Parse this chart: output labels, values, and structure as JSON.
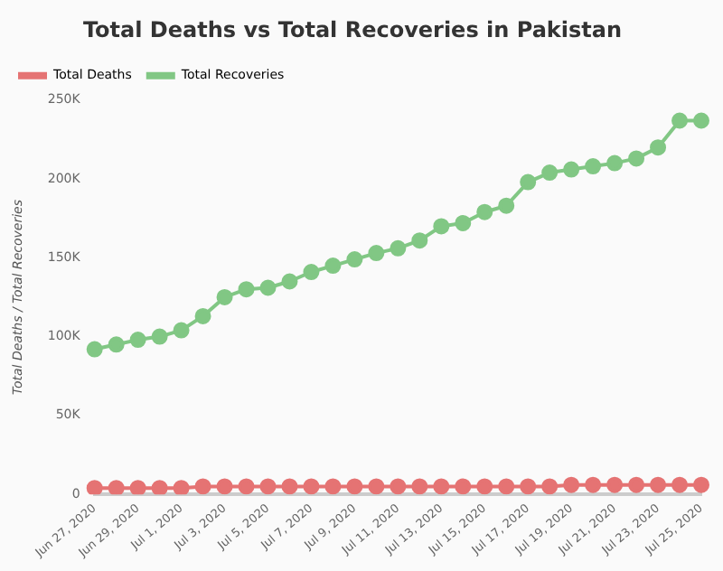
{
  "chart_data": {
    "type": "line",
    "title": "Total Deaths vs Total Recoveries in Pakistan",
    "ylabel": "Total Deaths / Total Recoveries",
    "categories": [
      "Jun 27, 2020",
      null,
      "Jun 29, 2020",
      null,
      "Jul 1, 2020",
      null,
      "Jul 3, 2020",
      null,
      "Jul 5, 2020",
      null,
      "Jul 7, 2020",
      null,
      "Jul 9, 2020",
      null,
      "Jul 11, 2020",
      null,
      "Jul 13, 2020",
      null,
      "Jul 15, 2020",
      null,
      "Jul 17, 2020",
      null,
      "Jul 19, 2020",
      null,
      "Jul 21, 2020",
      null,
      "Jul 23, 2020",
      null,
      "Jul 25, 2020"
    ],
    "series": [
      {
        "name": "Total Deaths",
        "color": "#e57373",
        "values": [
          4000,
          4000,
          4000,
          4000,
          4000,
          5000,
          5000,
          5000,
          5000,
          5000,
          5000,
          5000,
          5000,
          5000,
          5000,
          5000,
          5000,
          5000,
          5000,
          5000,
          5000,
          5000,
          6000,
          6000,
          6000,
          6000,
          6000,
          6000,
          6000
        ]
      },
      {
        "name": "Total Recoveries",
        "color": "#81c784",
        "values": [
          92000,
          95000,
          98000,
          100000,
          104000,
          113000,
          125000,
          130000,
          131000,
          135000,
          141000,
          145000,
          149000,
          153000,
          156000,
          161000,
          170000,
          172000,
          179000,
          183000,
          198000,
          204000,
          206000,
          208000,
          210000,
          213000,
          220000,
          237000,
          237000
        ]
      }
    ],
    "ylim": [
      0,
      250000
    ],
    "yticks": [
      {
        "value": 0,
        "label": "0"
      },
      {
        "value": 50000,
        "label": "50K"
      },
      {
        "value": 100000,
        "label": "100K"
      },
      {
        "value": 150000,
        "label": "150K"
      },
      {
        "value": 200000,
        "label": "200K"
      },
      {
        "value": 250000,
        "label": "250K"
      }
    ],
    "grid": false,
    "legend": "top left",
    "marker": "circle",
    "line_style": "solid"
  }
}
